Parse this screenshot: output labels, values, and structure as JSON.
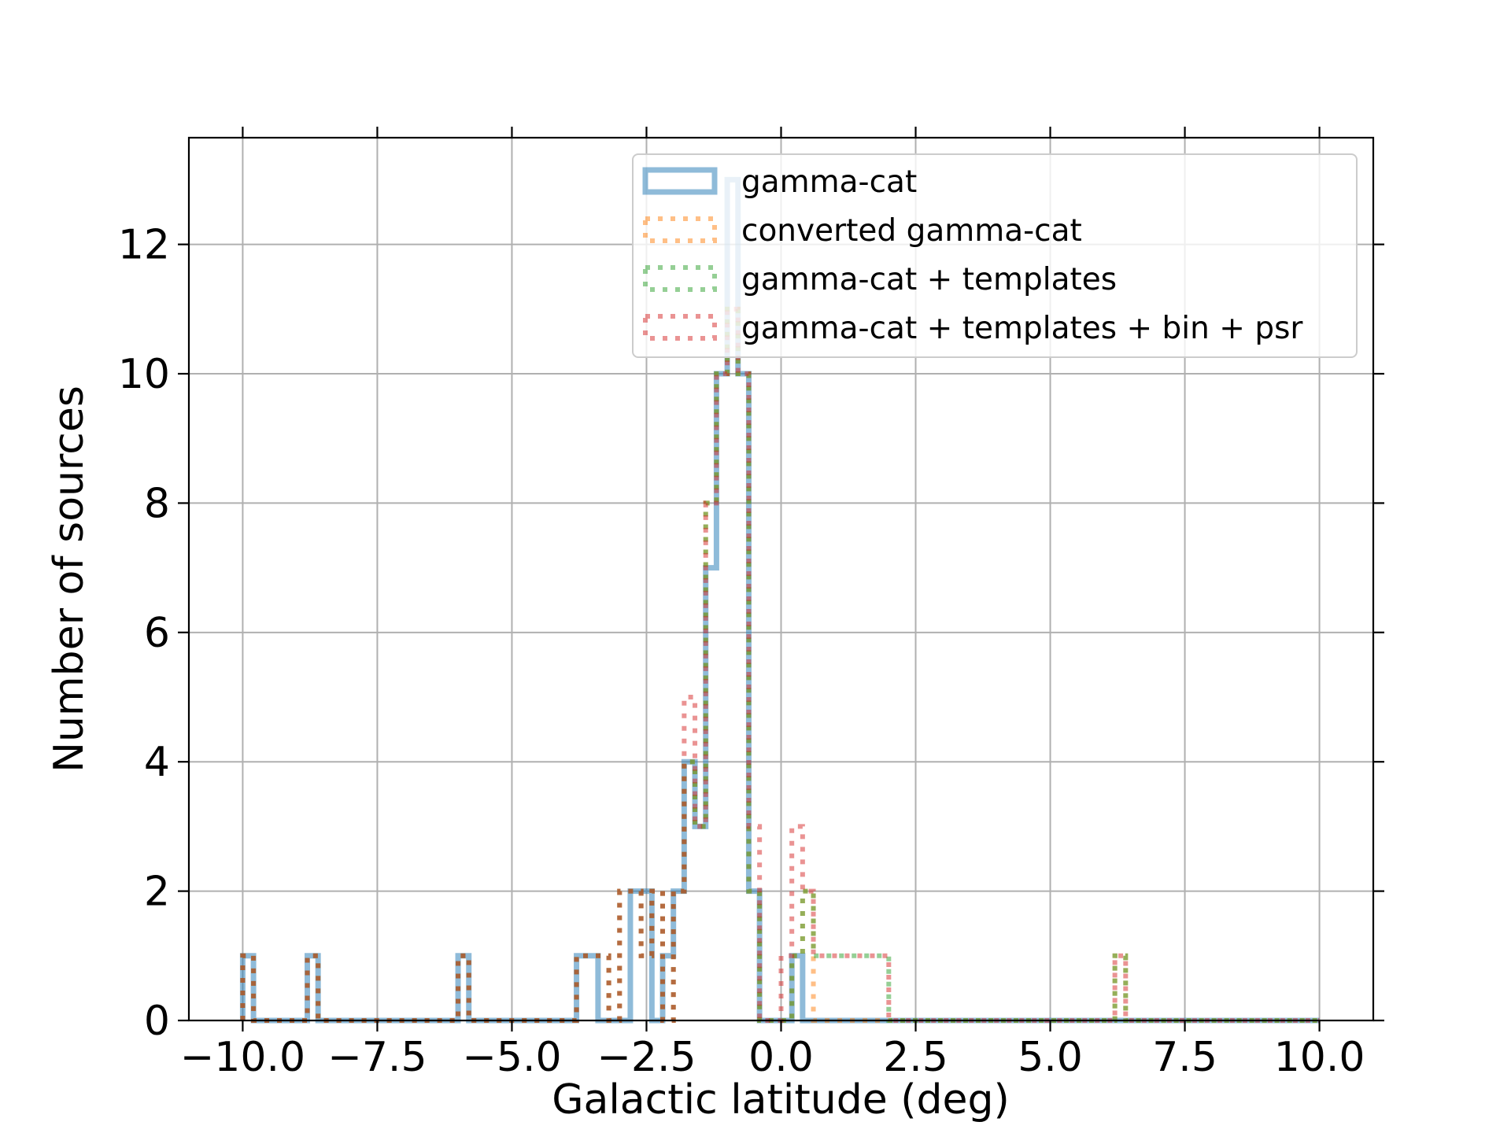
{
  "chart_data": {
    "type": "histogram-step",
    "xlabel": "Galactic latitude (deg)",
    "ylabel": "Number of sources",
    "xlim": [
      -11,
      11
    ],
    "ylim": [
      0,
      13.65
    ],
    "grid": true,
    "legend_position": "top-right",
    "x_ticks": [
      -10.0,
      -7.5,
      -5.0,
      -2.5,
      0.0,
      2.5,
      5.0,
      7.5,
      10.0
    ],
    "x_tick_labels": [
      "−10.0",
      "−7.5",
      "−5.0",
      "−2.5",
      "0.0",
      "2.5",
      "5.0",
      "7.5",
      "10.0"
    ],
    "y_ticks": [
      0,
      2,
      4,
      6,
      8,
      10,
      12
    ],
    "y_tick_labels": [
      "0",
      "2",
      "4",
      "6",
      "8",
      "10",
      "12"
    ],
    "bin_start": -10,
    "bin_width": 0.2,
    "series": [
      {
        "name": "gamma-cat",
        "color": "#1f77b4",
        "style": "solid",
        "counts": [
          1,
          0,
          0,
          0,
          0,
          0,
          1,
          0,
          0,
          0,
          0,
          0,
          0,
          0,
          0,
          0,
          0,
          0,
          0,
          0,
          1,
          0,
          0,
          0,
          0,
          0,
          0,
          0,
          0,
          0,
          0,
          1,
          1,
          0,
          0,
          0,
          2,
          2,
          0,
          1,
          2,
          4,
          3,
          7,
          10,
          13,
          10,
          2,
          0,
          0,
          0,
          1,
          0,
          0,
          0,
          0,
          0,
          0,
          0,
          0,
          0,
          0,
          0,
          0,
          0,
          0,
          0,
          0,
          0,
          0,
          0,
          0,
          0,
          0,
          0,
          0,
          0,
          0,
          0,
          0,
          0,
          0,
          0,
          0,
          0,
          0,
          0,
          0,
          0,
          0,
          0,
          0,
          0,
          0,
          0,
          0,
          0,
          0,
          0,
          0
        ]
      },
      {
        "name": "converted gamma-cat",
        "color": "#ff7f0e",
        "style": "dotted",
        "counts": [
          1,
          0,
          0,
          0,
          0,
          0,
          1,
          0,
          0,
          0,
          0,
          0,
          0,
          0,
          0,
          0,
          0,
          0,
          0,
          0,
          1,
          0,
          0,
          0,
          0,
          0,
          0,
          0,
          0,
          0,
          0,
          1,
          1,
          1,
          0,
          2,
          2,
          1,
          2,
          0,
          2,
          4,
          3,
          8,
          10,
          11,
          10,
          2,
          0,
          0,
          0,
          1,
          2,
          0,
          0,
          0,
          0,
          0,
          0,
          0,
          0,
          0,
          0,
          0,
          0,
          0,
          0,
          0,
          0,
          0,
          0,
          0,
          0,
          0,
          0,
          0,
          0,
          0,
          0,
          0,
          0,
          1,
          0,
          0,
          0,
          0,
          0,
          0,
          0,
          0,
          0,
          0,
          0,
          0,
          0,
          0,
          0,
          0,
          0,
          0
        ]
      },
      {
        "name": "gamma-cat + templates",
        "color": "#2ca02c",
        "style": "dotted",
        "counts": [
          1,
          0,
          0,
          0,
          0,
          0,
          1,
          0,
          0,
          0,
          0,
          0,
          0,
          0,
          0,
          0,
          0,
          0,
          0,
          0,
          1,
          0,
          0,
          0,
          0,
          0,
          0,
          0,
          0,
          0,
          0,
          1,
          1,
          1,
          0,
          2,
          2,
          1,
          2,
          0,
          2,
          4,
          3,
          8,
          10,
          11,
          10,
          2,
          0,
          0,
          0,
          1,
          2,
          1,
          1,
          1,
          1,
          1,
          1,
          1,
          0,
          0,
          0,
          0,
          0,
          0,
          0,
          0,
          0,
          0,
          0,
          0,
          0,
          0,
          0,
          0,
          0,
          0,
          0,
          0,
          0,
          1,
          0,
          0,
          0,
          0,
          0,
          0,
          0,
          0,
          0,
          0,
          0,
          0,
          0,
          0,
          0,
          0,
          0,
          0
        ]
      },
      {
        "name": "gamma-cat + templates + bin + psr",
        "color": "#d62728",
        "style": "dotted",
        "counts": [
          1,
          0,
          0,
          0,
          0,
          0,
          1,
          0,
          0,
          0,
          0,
          0,
          0,
          0,
          0,
          0,
          0,
          0,
          0,
          0,
          1,
          0,
          0,
          0,
          0,
          0,
          0,
          0,
          0,
          0,
          0,
          1,
          1,
          1,
          0,
          2,
          2,
          1,
          2,
          0,
          2,
          5,
          3,
          8,
          10,
          11,
          10,
          3,
          0,
          0,
          1,
          3,
          2,
          1,
          1,
          1,
          1,
          1,
          1,
          1,
          0,
          0,
          0,
          0,
          0,
          0,
          0,
          0,
          0,
          0,
          0,
          0,
          0,
          0,
          0,
          0,
          0,
          0,
          0,
          0,
          0,
          1,
          0,
          0,
          0,
          0,
          0,
          0,
          0,
          0,
          0,
          0,
          0,
          0,
          0,
          0,
          0,
          0,
          0,
          0
        ]
      }
    ]
  }
}
